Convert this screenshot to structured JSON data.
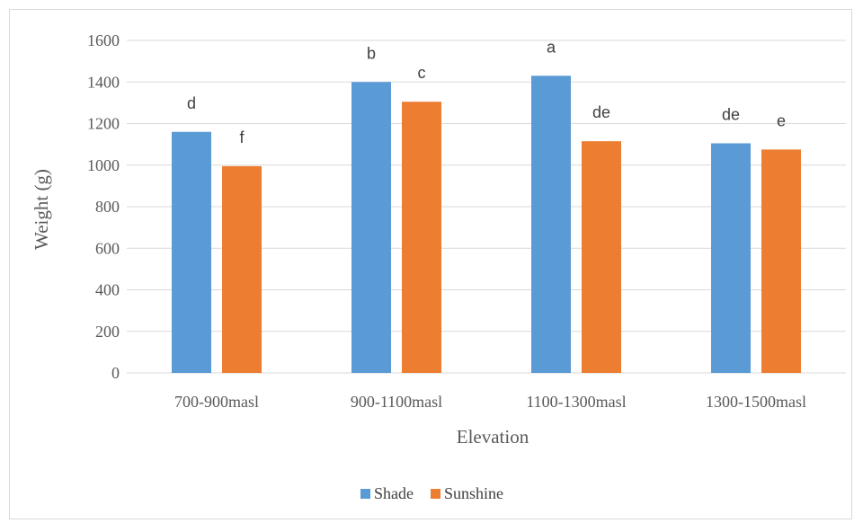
{
  "chart_data": {
    "type": "bar",
    "title": "",
    "xlabel": "Elevation",
    "ylabel": "Weight (g)",
    "ylim": [
      0,
      1600
    ],
    "yticks": [
      0,
      200,
      400,
      600,
      800,
      1000,
      1200,
      1400,
      1600
    ],
    "grid": true,
    "legend_position": "bottom",
    "categories": [
      "700-900masl",
      "900-1100masl",
      "1100-1300masl",
      "1300-1500masl"
    ],
    "series": [
      {
        "name": "Shade",
        "color": "#5b9bd5",
        "values": [
          1160,
          1400,
          1430,
          1105
        ],
        "labels": [
          "d",
          "b",
          "a",
          "de"
        ]
      },
      {
        "name": "Sunshine",
        "color": "#ed7d31",
        "values": [
          995,
          1305,
          1115,
          1075
        ],
        "labels": [
          "f",
          "c",
          "de",
          "e"
        ]
      }
    ]
  }
}
